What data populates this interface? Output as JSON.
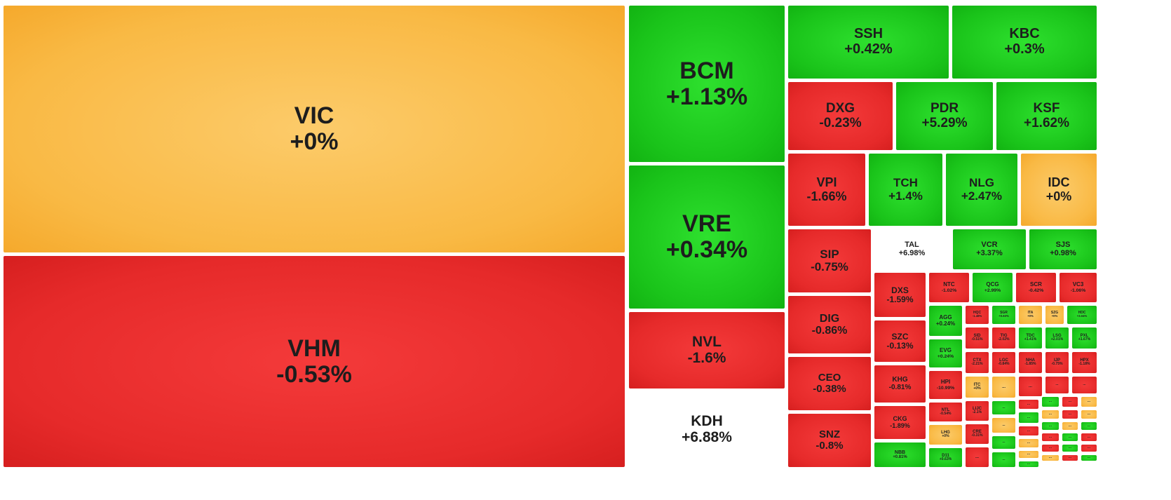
{
  "chart_data": {
    "type": "treemap",
    "colors": {
      "up": "#1ec81e",
      "down": "#e82c2c",
      "flat": "#f9b944",
      "ceiling": "#b21cc8"
    },
    "tiles": [
      {
        "symbol": "VIC",
        "change": "+0%",
        "status": "flat"
      },
      {
        "symbol": "VHM",
        "change": "-0.53%",
        "status": "down"
      },
      {
        "symbol": "BCM",
        "change": "+1.13%",
        "status": "up"
      },
      {
        "symbol": "VRE",
        "change": "+0.34%",
        "status": "up"
      },
      {
        "symbol": "NVL",
        "change": "-1.6%",
        "status": "down"
      },
      {
        "symbol": "KDH",
        "change": "+6.88%",
        "status": "ceiling"
      },
      {
        "symbol": "SSH",
        "change": "+0.42%",
        "status": "up"
      },
      {
        "symbol": "KBC",
        "change": "+0.3%",
        "status": "up"
      },
      {
        "symbol": "DXG",
        "change": "-0.23%",
        "status": "down"
      },
      {
        "symbol": "PDR",
        "change": "+5.29%",
        "status": "up"
      },
      {
        "symbol": "KSF",
        "change": "+1.62%",
        "status": "up"
      },
      {
        "symbol": "VPI",
        "change": "-1.66%",
        "status": "down"
      },
      {
        "symbol": "TCH",
        "change": "+1.4%",
        "status": "up"
      },
      {
        "symbol": "NLG",
        "change": "+2.47%",
        "status": "up"
      },
      {
        "symbol": "IDC",
        "change": "+0%",
        "status": "flat"
      },
      {
        "symbol": "SIP",
        "change": "-0.75%",
        "status": "down"
      },
      {
        "symbol": "TAL",
        "change": "+6.98%",
        "status": "ceiling"
      },
      {
        "symbol": "VCR",
        "change": "+3.37%",
        "status": "up"
      },
      {
        "symbol": "SJS",
        "change": "+0.98%",
        "status": "up"
      },
      {
        "symbol": "DIG",
        "change": "-0.86%",
        "status": "down"
      },
      {
        "symbol": "CEO",
        "change": "-0.38%",
        "status": "down"
      },
      {
        "symbol": "SNZ",
        "change": "-0.8%",
        "status": "down"
      },
      {
        "symbol": "DXS",
        "change": "-1.59%",
        "status": "down"
      },
      {
        "symbol": "NTC",
        "change": "-1.02%",
        "status": "down"
      },
      {
        "symbol": "QCG",
        "change": "+2.99%",
        "status": "up"
      },
      {
        "symbol": "SCR",
        "change": "-0.42%",
        "status": "down"
      },
      {
        "symbol": "VC3",
        "change": "-1.06%",
        "status": "down"
      },
      {
        "symbol": "SZC",
        "change": "-0.13%",
        "status": "down"
      },
      {
        "symbol": "AGG",
        "change": "+0.24%",
        "status": "up"
      },
      {
        "symbol": "HQC",
        "change": "-1.48%",
        "status": "down"
      },
      {
        "symbol": "SGR",
        "change": "+0.83%",
        "status": "up"
      },
      {
        "symbol": "ITA",
        "change": "+0%",
        "status": "flat"
      },
      {
        "symbol": "SZG",
        "change": "+0%",
        "status": "flat"
      },
      {
        "symbol": "HDC",
        "change": "+3.04%",
        "status": "up"
      },
      {
        "symbol": "KHG",
        "change": "-0.81%",
        "status": "down"
      },
      {
        "symbol": "EVG",
        "change": "+0.24%",
        "status": "up"
      },
      {
        "symbol": "SID",
        "change": "-0.51%",
        "status": "down"
      },
      {
        "symbol": "TIG",
        "change": "-2.02%",
        "status": "down"
      },
      {
        "symbol": "TDC",
        "change": "+1.41%",
        "status": "up"
      },
      {
        "symbol": "LSG",
        "change": "+2.01%",
        "status": "up"
      },
      {
        "symbol": "PXL",
        "change": "+1.67%",
        "status": "up"
      },
      {
        "symbol": "HPI",
        "change": "-10.99%",
        "status": "down"
      },
      {
        "symbol": "CTX",
        "change": "-2.21%",
        "status": "down"
      },
      {
        "symbol": "LGC",
        "change": "-0.84%",
        "status": "down"
      },
      {
        "symbol": "NHA",
        "change": "-1.85%",
        "status": "down"
      },
      {
        "symbol": "IJP",
        "change": "-0.75%",
        "status": "down"
      },
      {
        "symbol": "HPX",
        "change": "-1.18%",
        "status": "down"
      },
      {
        "symbol": "NTL",
        "change": "-0.54%",
        "status": "down"
      },
      {
        "symbol": "ITC",
        "change": "+0%",
        "status": "flat"
      },
      {
        "symbol": "LIJC",
        "change": "-2.1%",
        "status": "down"
      },
      {
        "symbol": "CKG",
        "change": "-1.89%",
        "status": "down"
      },
      {
        "symbol": "LHG",
        "change": "+0%",
        "status": "flat"
      },
      {
        "symbol": "CRE",
        "change": "-0.31%",
        "status": "down"
      },
      {
        "symbol": "NBB",
        "change": "+0.81%",
        "status": "up"
      },
      {
        "symbol": "D11",
        "change": "+0.63%",
        "status": "up"
      },
      {
        "symbol": "...",
        "change": "",
        "status": "down"
      },
      {
        "symbol": "...",
        "change": "",
        "status": "flat"
      },
      {
        "symbol": "...",
        "change": "",
        "status": "down"
      },
      {
        "symbol": "...",
        "change": "",
        "status": "down"
      },
      {
        "symbol": "...",
        "change": "",
        "status": "down"
      },
      {
        "symbol": "...",
        "change": "",
        "status": "up"
      },
      {
        "symbol": "...",
        "change": "",
        "status": "flat"
      },
      {
        "symbol": "...",
        "change": "",
        "status": "up"
      },
      {
        "symbol": "...",
        "change": "",
        "status": "up"
      },
      {
        "symbol": "...",
        "change": "",
        "status": "down"
      },
      {
        "symbol": "...",
        "change": "",
        "status": "up"
      },
      {
        "symbol": "...",
        "change": "",
        "status": "down"
      },
      {
        "symbol": "...",
        "change": "",
        "status": "flat"
      },
      {
        "symbol": "...",
        "change": "",
        "status": "up"
      },
      {
        "symbol": "...",
        "change": "",
        "status": "flat"
      },
      {
        "symbol": "...",
        "change": "",
        "status": "down"
      },
      {
        "symbol": "...",
        "change": "",
        "status": "flat"
      },
      {
        "symbol": "...",
        "change": "",
        "status": "down"
      },
      {
        "symbol": "...",
        "change": "",
        "status": "up"
      },
      {
        "symbol": "...",
        "change": "",
        "status": "flat"
      },
      {
        "symbol": "...",
        "change": "",
        "status": "up"
      },
      {
        "symbol": "...",
        "change": "",
        "status": "flat"
      },
      {
        "symbol": "...",
        "change": "",
        "status": "down"
      },
      {
        "symbol": "...",
        "change": "",
        "status": "up"
      },
      {
        "symbol": "...",
        "change": "",
        "status": "down"
      },
      {
        "symbol": "...",
        "change": "",
        "status": "flat"
      },
      {
        "symbol": "...",
        "change": "",
        "status": "down"
      },
      {
        "symbol": "...",
        "change": "",
        "status": "up"
      },
      {
        "symbol": "...",
        "change": "",
        "status": "down"
      },
      {
        "symbol": "...",
        "change": "",
        "status": "up"
      },
      {
        "symbol": "...",
        "change": "",
        "status": "flat"
      },
      {
        "symbol": "...",
        "change": "",
        "status": "down"
      },
      {
        "symbol": "...",
        "change": "",
        "status": "up"
      },
      {
        "symbol": "...",
        "change": "",
        "status": "down"
      },
      {
        "symbol": "...",
        "change": "",
        "status": "flat"
      }
    ]
  }
}
